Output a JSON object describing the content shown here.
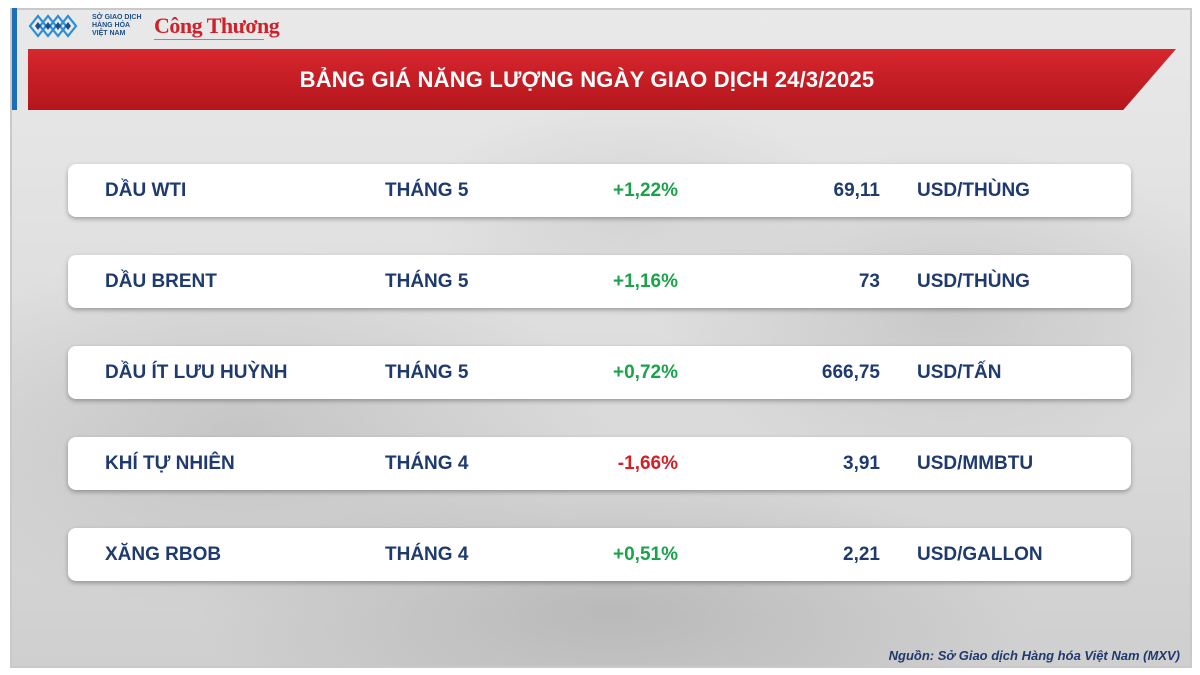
{
  "header": {
    "org_logo_lines": [
      "SỞ GIAO DỊCH",
      "HÀNG HÓA",
      "VIỆT NAM"
    ],
    "brand_logo": "Công Thương",
    "title": "BẢNG GIÁ NĂNG LƯỢNG NGÀY GIAO DỊCH 24/3/2025"
  },
  "colors": {
    "banner": "#c81e25",
    "text": "#1f3a6e",
    "up": "#1aa34a",
    "down": "#d51f26"
  },
  "rows": [
    {
      "name": "DẦU WTI",
      "month": "THÁNG 5",
      "change": "+1,22%",
      "direction": "up",
      "price": "69,11",
      "unit": "USD/THÙNG"
    },
    {
      "name": "DẦU BRENT",
      "month": "THÁNG 5",
      "change": "+1,16%",
      "direction": "up",
      "price": "73",
      "unit": "USD/THÙNG"
    },
    {
      "name": "DẦU ÍT LƯU HUỲNH",
      "month": "THÁNG 5",
      "change": "+0,72%",
      "direction": "up",
      "price": "666,75",
      "unit": "USD/TẤN"
    },
    {
      "name": "KHÍ TỰ NHIÊN",
      "month": "THÁNG 4",
      "change": "-1,66%",
      "direction": "down",
      "price": "3,91",
      "unit": "USD/MMBTU"
    },
    {
      "name": "XĂNG RBOB",
      "month": "THÁNG 4",
      "change": "+0,51%",
      "direction": "up",
      "price": "2,21",
      "unit": "USD/GALLON"
    }
  ],
  "footer": {
    "source": "Nguồn: Sở Giao dịch Hàng hóa Việt Nam (MXV)"
  }
}
